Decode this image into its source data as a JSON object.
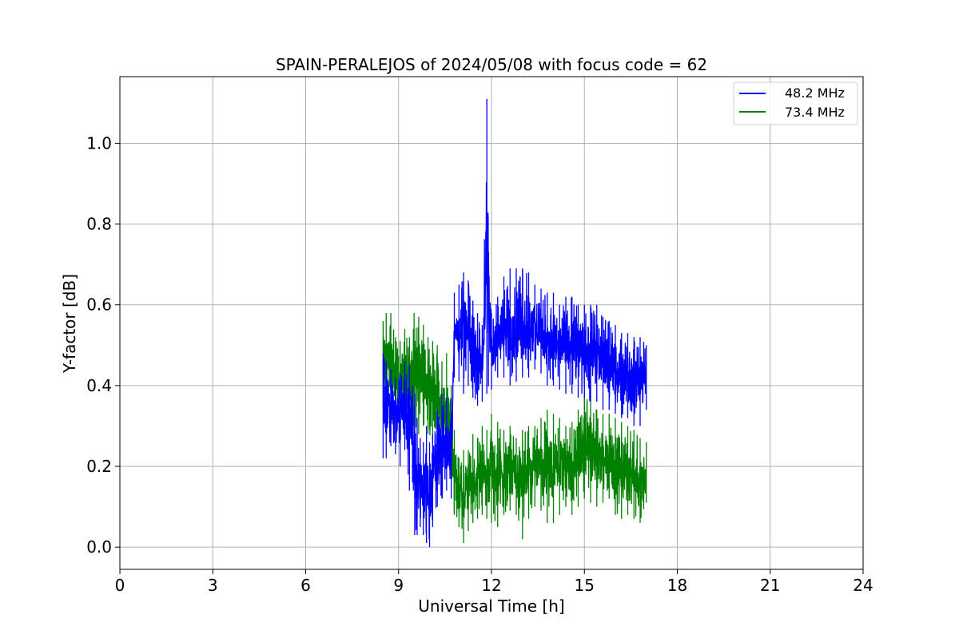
{
  "chart_data": {
    "type": "line",
    "title": "SPAIN-PERALEJOS of 2024/05/08 with focus code = 62",
    "xlabel": "Universal Time [h]",
    "ylabel": "Y-factor [dB]",
    "xlim": [
      0,
      24
    ],
    "ylim": [
      -0.055,
      1.165
    ],
    "xticks": [
      0,
      3,
      6,
      9,
      12,
      15,
      18,
      21,
      24
    ],
    "xtick_labels": [
      "0",
      "3",
      "6",
      "9",
      "12",
      "15",
      "18",
      "21",
      "24"
    ],
    "yticks": [
      0.0,
      0.2,
      0.4,
      0.6,
      0.8,
      1.0
    ],
    "ytick_labels": [
      "0.0",
      "0.2",
      "0.4",
      "0.6",
      "0.8",
      "1.0"
    ],
    "grid": true,
    "legend": "top-right",
    "series": [
      {
        "name": "48.2 MHz",
        "color": "#0000ff",
        "x": [
          8.5,
          8.6,
          8.75,
          8.9,
          9.05,
          9.2,
          9.35,
          9.45,
          9.52,
          9.6,
          9.7,
          9.8,
          9.9,
          10.0,
          10.1,
          10.25,
          10.4,
          10.55,
          10.7,
          10.8,
          10.95,
          11.1,
          11.25,
          11.4,
          11.55,
          11.7,
          11.85,
          12.0,
          12.2,
          12.4,
          12.6,
          12.8,
          13.0,
          13.2,
          13.4,
          13.6,
          13.8,
          14.0,
          14.2,
          14.4,
          14.6,
          14.8,
          15.0,
          15.2,
          15.4,
          15.6,
          15.8,
          16.0,
          16.2,
          16.4,
          16.6,
          16.8,
          17.0
        ],
        "min": [
          0.22,
          0.22,
          0.25,
          0.23,
          0.2,
          0.24,
          0.14,
          0.16,
          0.03,
          0.03,
          0.05,
          0.03,
          0.01,
          0.0,
          0.05,
          0.1,
          0.12,
          0.14,
          0.12,
          0.42,
          0.41,
          0.38,
          0.4,
          0.37,
          0.35,
          0.36,
          0.38,
          0.39,
          0.42,
          0.42,
          0.4,
          0.41,
          0.42,
          0.42,
          0.44,
          0.43,
          0.4,
          0.4,
          0.39,
          0.38,
          0.38,
          0.37,
          0.37,
          0.36,
          0.36,
          0.34,
          0.34,
          0.33,
          0.32,
          0.32,
          0.3,
          0.3,
          0.34
        ],
        "max": [
          0.48,
          0.46,
          0.44,
          0.42,
          0.43,
          0.46,
          0.45,
          0.4,
          0.38,
          0.32,
          0.27,
          0.26,
          0.3,
          0.26,
          0.28,
          0.34,
          0.38,
          0.37,
          0.37,
          0.63,
          0.65,
          0.68,
          0.66,
          0.61,
          0.58,
          0.55,
          1.11,
          0.58,
          0.62,
          0.67,
          0.69,
          0.69,
          0.69,
          0.68,
          0.65,
          0.64,
          0.63,
          0.63,
          0.6,
          0.62,
          0.62,
          0.6,
          0.6,
          0.6,
          0.6,
          0.57,
          0.56,
          0.55,
          0.53,
          0.53,
          0.52,
          0.52,
          0.5
        ]
      },
      {
        "name": "73.4 MHz",
        "color": "#008000",
        "x": [
          8.5,
          8.6,
          8.75,
          8.9,
          9.05,
          9.2,
          9.35,
          9.5,
          9.65,
          9.8,
          9.95,
          10.1,
          10.25,
          10.4,
          10.55,
          10.7,
          10.8,
          10.95,
          11.1,
          11.25,
          11.4,
          11.55,
          11.7,
          11.85,
          12.0,
          12.2,
          12.4,
          12.6,
          12.8,
          13.0,
          13.2,
          13.4,
          13.6,
          13.8,
          14.0,
          14.2,
          14.4,
          14.6,
          14.8,
          15.0,
          15.2,
          15.4,
          15.6,
          15.8,
          16.0,
          16.2,
          16.4,
          16.6,
          16.8,
          17.0
        ],
        "min": [
          0.34,
          0.36,
          0.32,
          0.3,
          0.3,
          0.33,
          0.27,
          0.3,
          0.28,
          0.3,
          0.28,
          0.26,
          0.25,
          0.18,
          0.2,
          0.17,
          0.08,
          0.05,
          0.01,
          0.04,
          0.06,
          0.07,
          0.08,
          0.07,
          0.06,
          0.05,
          0.08,
          0.09,
          0.08,
          0.02,
          0.07,
          0.1,
          0.09,
          0.06,
          0.06,
          0.08,
          0.1,
          0.08,
          0.1,
          0.12,
          0.11,
          0.1,
          0.11,
          0.12,
          0.08,
          0.07,
          0.08,
          0.07,
          0.06,
          0.11
        ],
        "max": [
          0.56,
          0.58,
          0.58,
          0.52,
          0.51,
          0.54,
          0.52,
          0.58,
          0.57,
          0.55,
          0.52,
          0.51,
          0.5,
          0.46,
          0.48,
          0.4,
          0.29,
          0.22,
          0.24,
          0.24,
          0.28,
          0.27,
          0.3,
          0.29,
          0.33,
          0.31,
          0.29,
          0.3,
          0.27,
          0.29,
          0.3,
          0.3,
          0.32,
          0.34,
          0.33,
          0.32,
          0.3,
          0.31,
          0.34,
          0.38,
          0.36,
          0.34,
          0.33,
          0.33,
          0.32,
          0.31,
          0.3,
          0.29,
          0.27,
          0.26
        ]
      }
    ]
  }
}
